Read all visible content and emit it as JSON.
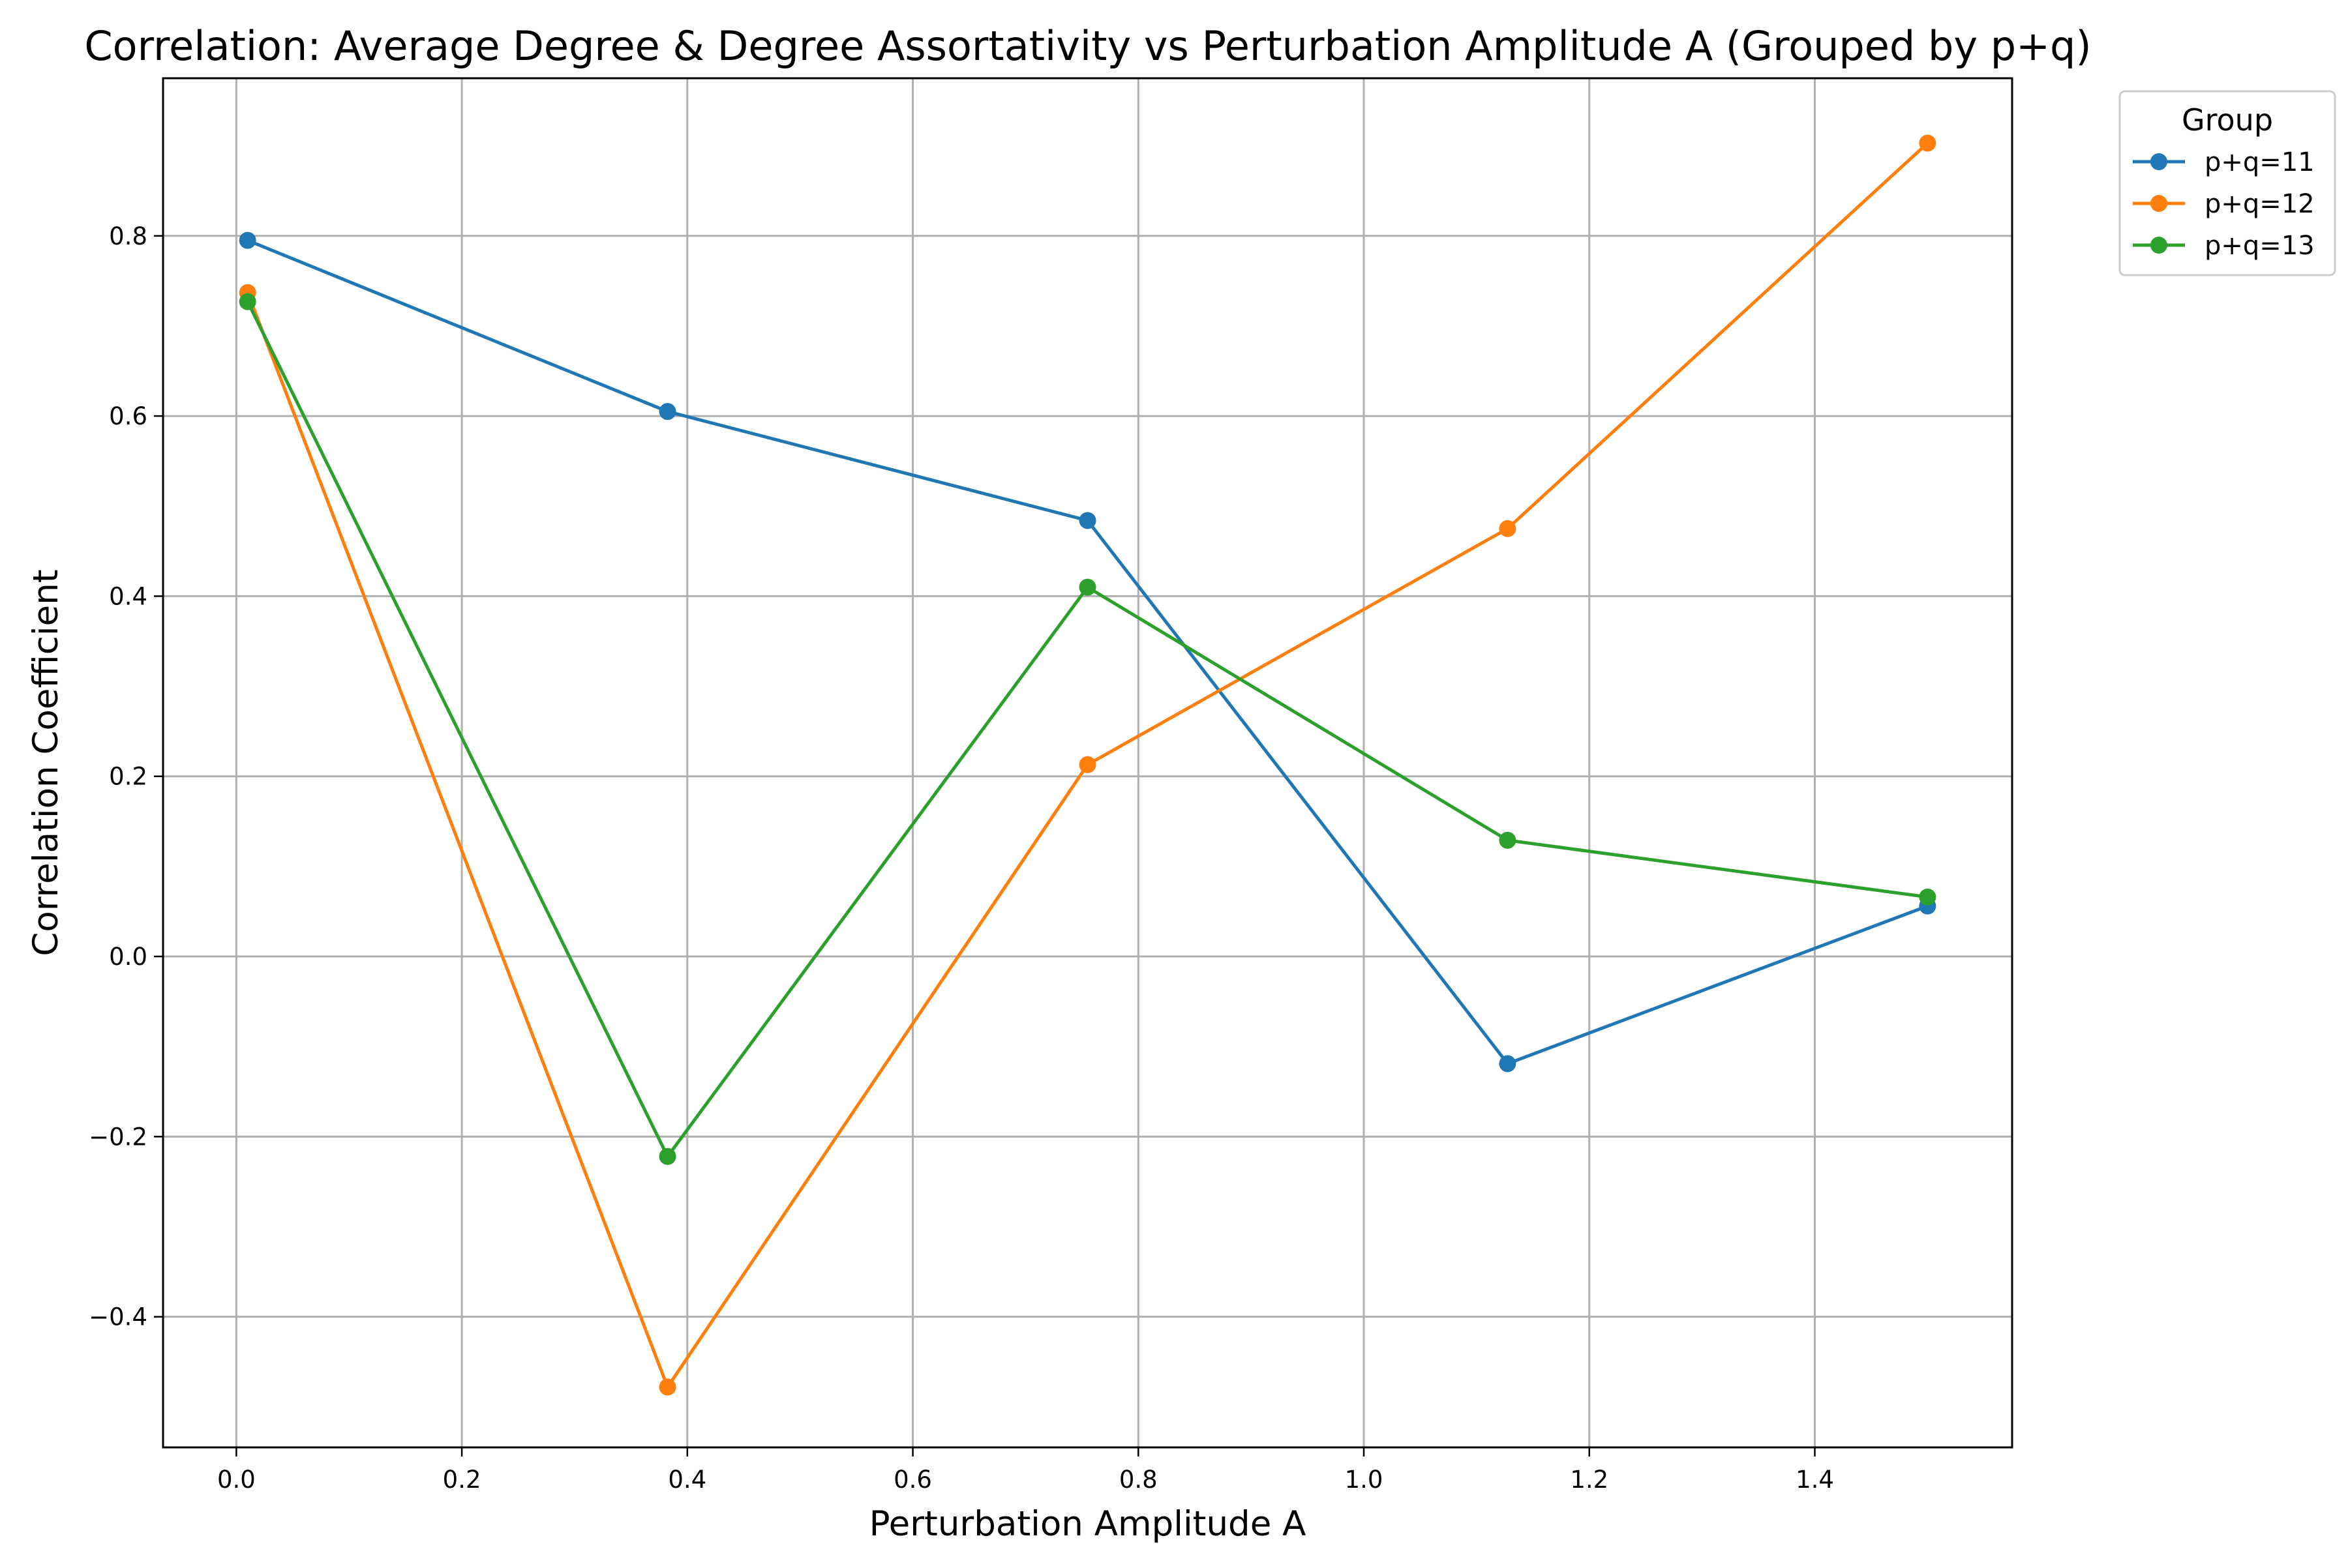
{
  "chart_data": {
    "type": "line",
    "title": "Correlation: Average Degree & Degree Assortativity vs Perturbation Amplitude A (Grouped by p+q)",
    "xlabel": "Perturbation Amplitude A",
    "ylabel": "Correlation Coefficient",
    "xlim": [
      -0.065,
      1.575
    ],
    "ylim": [
      -0.545,
      0.975
    ],
    "xticks": [
      0.0,
      0.2,
      0.4,
      0.6,
      0.8,
      1.0,
      1.2,
      1.4
    ],
    "xtick_labels": [
      "0.0",
      "0.2",
      "0.4",
      "0.6",
      "0.8",
      "1.0",
      "1.2",
      "1.4"
    ],
    "yticks": [
      -0.4,
      -0.2,
      0.0,
      0.2,
      0.4,
      0.6,
      0.8
    ],
    "ytick_labels": [
      "−0.4",
      "−0.2",
      "0.0",
      "0.2",
      "0.4",
      "0.6",
      "0.8"
    ],
    "grid": true,
    "legend": {
      "title": "Group",
      "placement": "outside-top-right"
    },
    "x": [
      0.01,
      0.3825,
      0.755,
      1.1275,
      1.5
    ],
    "series": [
      {
        "name": "p+q=11",
        "color": "#1f77b4",
        "values": [
          0.795,
          0.605,
          0.484,
          -0.119,
          0.056
        ]
      },
      {
        "name": "p+q=12",
        "color": "#ff7f0e",
        "values": [
          0.737,
          -0.478,
          0.213,
          0.475,
          0.903
        ]
      },
      {
        "name": "p+q=13",
        "color": "#2ca02c",
        "values": [
          0.727,
          -0.222,
          0.41,
          0.129,
          0.066
        ]
      }
    ]
  }
}
